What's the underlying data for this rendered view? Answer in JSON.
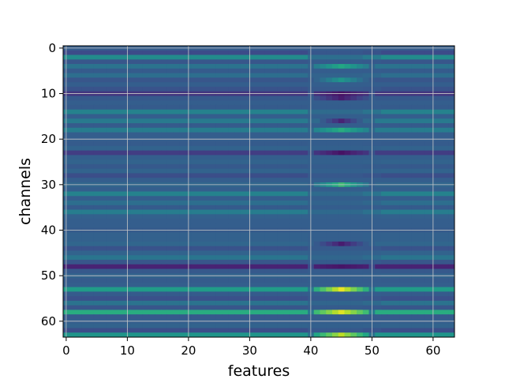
{
  "chart_data": {
    "type": "heatmap",
    "title": "",
    "xlabel": "features",
    "ylabel": "channels",
    "x_ticks": [
      0,
      10,
      20,
      30,
      40,
      50,
      60
    ],
    "y_ticks": [
      0,
      10,
      20,
      30,
      40,
      50,
      60
    ],
    "xlim": [
      -0.5,
      63.5
    ],
    "ylim": [
      63.5,
      -0.5
    ],
    "n_features": 64,
    "n_channels": 64,
    "colormap": "viridis",
    "grid": true,
    "grid_color": "#c8c8c8",
    "value_range": [
      0,
      1
    ],
    "row_base_values": [
      0.3,
      0.23,
      0.48,
      0.27,
      0.38,
      0.29,
      0.36,
      0.27,
      0.3,
      0.26,
      0.16,
      0.28,
      0.3,
      0.29,
      0.44,
      0.3,
      0.41,
      0.29,
      0.42,
      0.3,
      0.3,
      0.29,
      0.32,
      0.18,
      0.3,
      0.32,
      0.28,
      0.32,
      0.24,
      0.3,
      0.33,
      0.3,
      0.44,
      0.3,
      0.36,
      0.29,
      0.42,
      0.31,
      0.3,
      0.3,
      0.29,
      0.31,
      0.31,
      0.33,
      0.26,
      0.32,
      0.39,
      0.27,
      0.1,
      0.28,
      0.32,
      0.29,
      0.3,
      0.55,
      0.29,
      0.25,
      0.38,
      0.27,
      0.62,
      0.28,
      0.3,
      0.32,
      0.24,
      0.52
    ],
    "hotspots": [
      {
        "channel": 4,
        "value": 0.6
      },
      {
        "channel": 7,
        "value": 0.52
      },
      {
        "channel": 10,
        "value": 0.05
      },
      {
        "channel": 11,
        "value": 0.08
      },
      {
        "channel": 16,
        "value": 0.1
      },
      {
        "channel": 18,
        "value": 0.62
      },
      {
        "channel": 23,
        "value": 0.05
      },
      {
        "channel": 30,
        "value": 0.68
      },
      {
        "channel": 43,
        "value": 0.08
      },
      {
        "channel": 48,
        "value": 0.06
      },
      {
        "channel": 53,
        "value": 0.97
      },
      {
        "channel": 58,
        "value": 0.95
      },
      {
        "channel": 63,
        "value": 0.9
      }
    ]
  }
}
